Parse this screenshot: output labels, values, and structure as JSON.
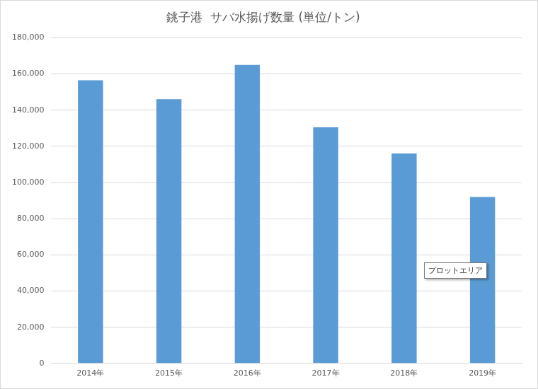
{
  "chart_data": {
    "type": "bar",
    "title": "銚子港  サバ水揚げ数量 (単位/トン)",
    "categories": [
      "2014年",
      "2015年",
      "2016年",
      "2017年",
      "2018年",
      "2019年"
    ],
    "values": [
      156500,
      146000,
      165000,
      130500,
      116000,
      92000
    ],
    "color": "#5b9bd5",
    "ylim": [
      0,
      180000
    ],
    "yticks": [
      0,
      {
        "value": 20000,
        "label": "20,000"
      },
      {
        "value": 40000,
        "label": "40,000"
      },
      {
        "value": 60000,
        "label": "60,000"
      },
      {
        "value": 80000,
        "label": "80,000"
      },
      {
        "value": 100000,
        "label": "100,000"
      },
      {
        "value": 120000,
        "label": "120,000"
      },
      {
        "value": 140000,
        "label": "140,000"
      },
      {
        "value": 160000,
        "label": "160,000"
      },
      {
        "value": 180000,
        "label": "180,000"
      }
    ],
    "grid": true,
    "annotation": "プロットエリア"
  }
}
